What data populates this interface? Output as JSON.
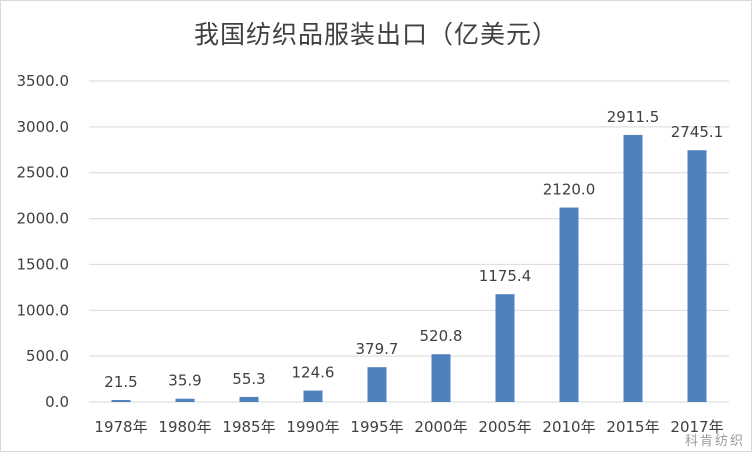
{
  "chart_data": {
    "type": "bar",
    "title": "我国纺织品服装出口（亿美元）",
    "categories": [
      "1978年",
      "1980年",
      "1985年",
      "1990年",
      "1995年",
      "2000年",
      "2005年",
      "2010年",
      "2015年",
      "2017年"
    ],
    "values": [
      21.5,
      35.9,
      55.3,
      124.6,
      379.7,
      520.8,
      1175.4,
      2120.0,
      2911.5,
      2745.1
    ],
    "data_labels": [
      "21.5",
      "35.9",
      "55.3",
      "124.6",
      "379.7",
      "520.8",
      "1175.4",
      "2120.0",
      "2911.5",
      "2745.1"
    ],
    "ylim": [
      0,
      3500
    ],
    "yticks": [
      "0.0",
      "500.0",
      "1000.0",
      "1500.0",
      "2000.0",
      "2500.0",
      "3000.0",
      "3500.0"
    ],
    "grid": true,
    "bar_color": "#4f81bd",
    "grid_color": "#d9d9d9"
  },
  "watermark": "科肯纺织"
}
